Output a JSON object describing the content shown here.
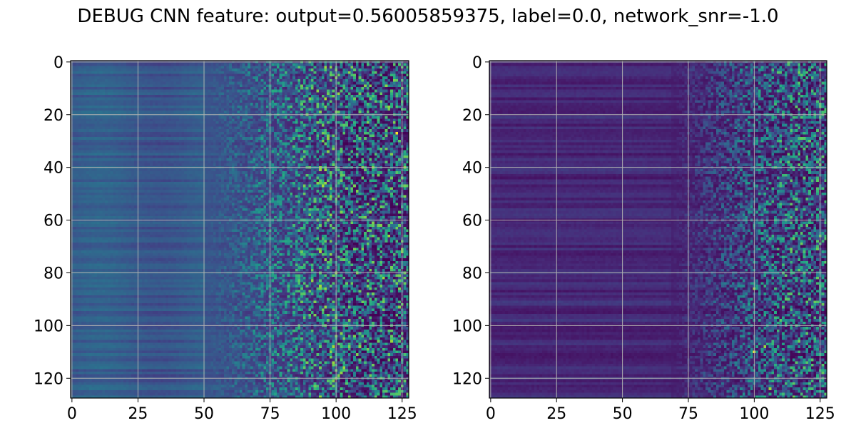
{
  "figure": {
    "title": "DEBUG CNN feature: output=0.56005859375, label=0.0, network_snr=-1.0"
  },
  "colors": {
    "colormap": "viridis",
    "grid": "#b0b0b0",
    "axes": "#000000"
  },
  "chart_data": [
    {
      "type": "heatmap",
      "title": "",
      "xlabel": "",
      "ylabel": "",
      "grid": true,
      "colormap": "viridis",
      "xlim": [
        -0.5,
        127.5
      ],
      "ylim": [
        127.5,
        -0.5
      ],
      "rows": 128,
      "cols": 128,
      "x_ticks": [
        "0",
        "25",
        "50",
        "75",
        "100",
        "125"
      ],
      "x_tick_values": [
        0,
        25,
        50,
        75,
        100,
        125
      ],
      "y_ticks": [
        "0",
        "20",
        "40",
        "60",
        "80",
        "100",
        "120"
      ],
      "y_tick_values": [
        0,
        20,
        40,
        60,
        80,
        100,
        120
      ],
      "description_values": {
        "low_x_intensity": 0.25,
        "high_x_intensity_mean": 0.35,
        "peak_cells": [
          [
            123,
            27
          ],
          [
            120,
            66
          ],
          [
            121,
            106
          ],
          [
            118,
            82
          ]
        ]
      }
    },
    {
      "type": "heatmap",
      "title": "",
      "xlabel": "",
      "ylabel": "",
      "grid": true,
      "colormap": "viridis",
      "xlim": [
        -0.5,
        127.5
      ],
      "ylim": [
        127.5,
        -0.5
      ],
      "rows": 128,
      "cols": 128,
      "x_ticks": [
        "0",
        "25",
        "50",
        "75",
        "100",
        "125"
      ],
      "x_tick_values": [
        0,
        25,
        50,
        75,
        100,
        125
      ],
      "y_ticks": [
        "0",
        "20",
        "40",
        "60",
        "80",
        "100",
        "120"
      ],
      "y_tick_values": [
        0,
        20,
        40,
        60,
        80,
        100,
        120
      ],
      "description_values": {
        "low_x_intensity": 0.08,
        "high_x_intensity_mean": 0.3,
        "peak_cells": [
          [
            100,
            110
          ],
          [
            100,
            86
          ],
          [
            106,
            124
          ],
          [
            104,
            108
          ]
        ]
      }
    }
  ]
}
